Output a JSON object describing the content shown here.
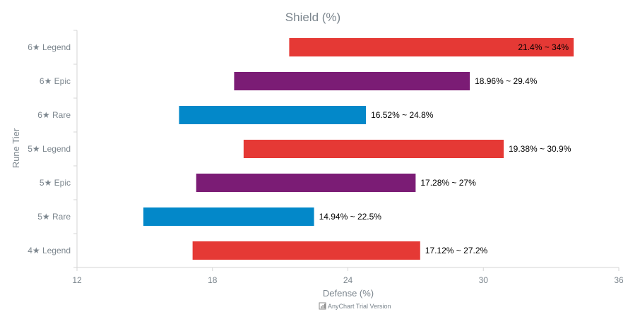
{
  "chart_data": {
    "type": "bar",
    "orientation": "horizontal-range",
    "title": "Shield (%)",
    "xlabel": "Defense (%)",
    "ylabel": "Rune Tier",
    "xlim": [
      12,
      36
    ],
    "x_ticks": [
      "12",
      "18",
      "24",
      "30",
      "36"
    ],
    "grid": false,
    "categories": [
      "6★ Legend",
      "6★ Epic",
      "6★ Rare",
      "5★ Legend",
      "5★ Epic",
      "5★ Rare",
      "4★ Legend"
    ],
    "ranges": [
      {
        "low": 21.4,
        "high": 34,
        "label": "21.4% ~ 34%",
        "color": "#e53935"
      },
      {
        "low": 18.96,
        "high": 29.4,
        "label": "18.96% ~ 29.4%",
        "color": "#7b1c75"
      },
      {
        "low": 16.52,
        "high": 24.8,
        "label": "16.52% ~ 24.8%",
        "color": "#0388c9"
      },
      {
        "low": 19.38,
        "high": 30.9,
        "label": "19.38% ~ 30.9%",
        "color": "#e53935"
      },
      {
        "low": 17.28,
        "high": 27,
        "label": "17.28% ~ 27%",
        "color": "#7b1c75"
      },
      {
        "low": 14.94,
        "high": 22.5,
        "label": "14.94% ~ 22.5%",
        "color": "#0388c9"
      },
      {
        "low": 17.12,
        "high": 27.2,
        "label": "17.12% ~ 27.2%",
        "color": "#e53935"
      }
    ]
  },
  "credit": "AnyChart Trial Version"
}
